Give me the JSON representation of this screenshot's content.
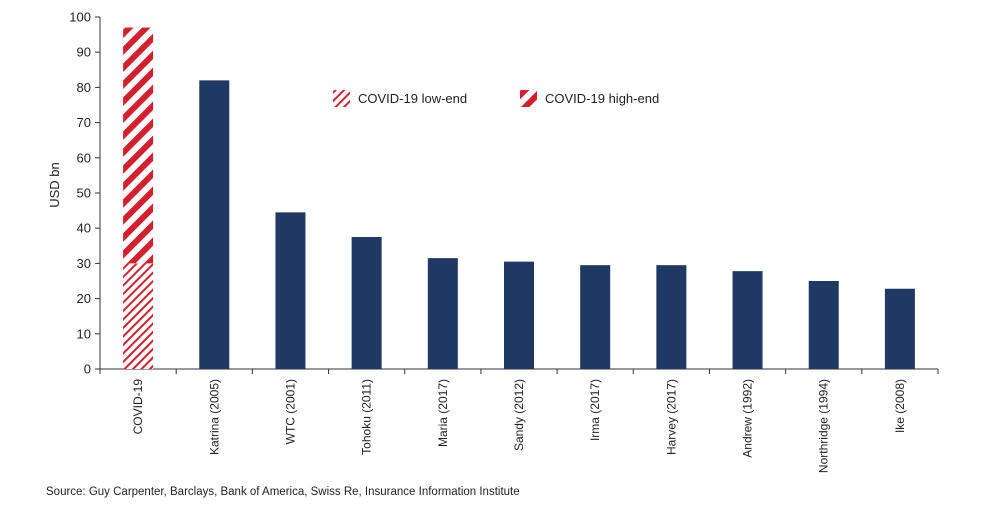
{
  "chart_data": {
    "type": "bar",
    "ylabel": "USD bn",
    "ylim": [
      0,
      100
    ],
    "yticks": [
      0,
      10,
      20,
      30,
      40,
      50,
      60,
      70,
      80,
      90,
      100
    ],
    "categories": [
      "COVID-19",
      "Katrina (2005)",
      "WTC (2001)",
      "Tohoku (2011)",
      "Maria (2017)",
      "Sandy (2012)",
      "Irma (2017)",
      "Harvey (2017)",
      "Andrew (1992)",
      "Northridge (1994)",
      "Ike (2008)"
    ],
    "values": [
      null,
      82,
      44.5,
      37.5,
      31.5,
      30.5,
      29.5,
      29.5,
      27.8,
      25,
      22.8
    ],
    "covid": {
      "low_end": 30,
      "high_end": 97
    },
    "series": [
      {
        "name": "COVID-19 low-end"
      },
      {
        "name": "COVID-19 high-end"
      }
    ],
    "legend_position": "top-center",
    "colors": {
      "bar": "#1f3864",
      "covid": "#d4202e",
      "axis": "#333333"
    }
  },
  "footer": {
    "source": "Source: Guy Carpenter, Barclays, Bank of America, Swiss Re, Insurance Information Institute"
  }
}
